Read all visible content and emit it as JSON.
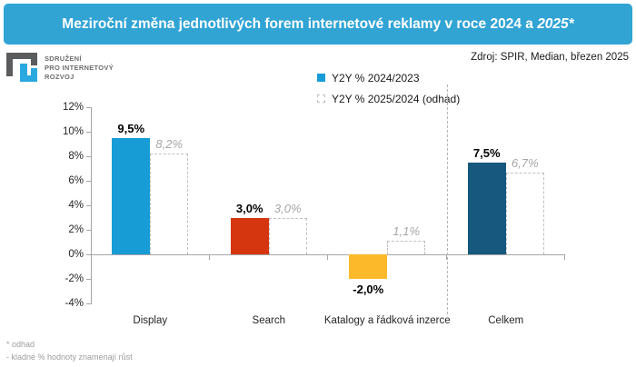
{
  "title": {
    "main": "Meziroční změna jednotlivých forem internetové reklamy v roce 2024 a ",
    "italic": "2025*"
  },
  "logo": {
    "line1": "SDRUŽENÍ",
    "line2": "PRO INTERNETOVÝ",
    "line3": "ROZVOJ"
  },
  "source": {
    "text": "Zdroj: SPIR, Median, březen 2025"
  },
  "legend": {
    "items": [
      {
        "label": "Y2Y % 2024/2023",
        "swatch": "solid"
      },
      {
        "label": "Y2Y % 2025/2024 (odhad)",
        "swatch": "dashed-outline"
      }
    ]
  },
  "footnotes": [
    "* odhad",
    "- kladné % hodnoty znamenají růst"
  ],
  "chart_data": {
    "type": "bar",
    "title": "Meziroční změna jednotlivých forem internetové reklamy v roce 2024 a 2025*",
    "categories": [
      "Display",
      "Search",
      "Katalogy a řádková inzerce",
      "Celkem"
    ],
    "series": [
      {
        "name": "Y2Y % 2024/2023",
        "style": "solid",
        "values": [
          9.5,
          3.0,
          -2.0,
          7.5
        ],
        "labels": [
          "9,5%",
          "3,0%",
          "-2,0%",
          "7,5%"
        ],
        "point_colors": [
          "#189cd6",
          "#d5350f",
          "#fcba2b",
          "#16587e"
        ]
      },
      {
        "name": "Y2Y % 2025/2024 (odhad)",
        "style": "dashed-outline",
        "values": [
          8.2,
          3.0,
          1.1,
          6.7
        ],
        "labels": [
          "8,2%",
          "3,0%",
          "1,1%",
          "6,7%"
        ]
      }
    ],
    "ylabel": "",
    "ylim": [
      -4,
      12
    ],
    "ytick_step": 2,
    "yticks": [
      {
        "v": 12,
        "label": "12%"
      },
      {
        "v": 10,
        "label": "10%"
      },
      {
        "v": 8,
        "label": "8%"
      },
      {
        "v": 6,
        "label": "6%"
      },
      {
        "v": 4,
        "label": "4%"
      },
      {
        "v": 2,
        "label": "2%"
      },
      {
        "v": 0,
        "label": "0%"
      },
      {
        "v": -2,
        "label": "-2%"
      },
      {
        "v": -4,
        "label": "-4%"
      }
    ],
    "grid": false,
    "legend_position": "top",
    "separator_before_category_index": 3
  },
  "colors": {
    "header_bg": "#31a4d4",
    "title_text": "#ffffff",
    "axis": "#a6a6a6",
    "dashed_outline": "#c0c0c0",
    "estimate_label": "#a6a6a6",
    "value_label": "#000000",
    "footnote": "#9d9d9d",
    "separator": "#b5b5b5",
    "legend_solid": "#189cd6",
    "logo_gray": "#5b5c5e",
    "logo_blue": "#2aa9e0",
    "logo_text": "#6d6e71"
  }
}
